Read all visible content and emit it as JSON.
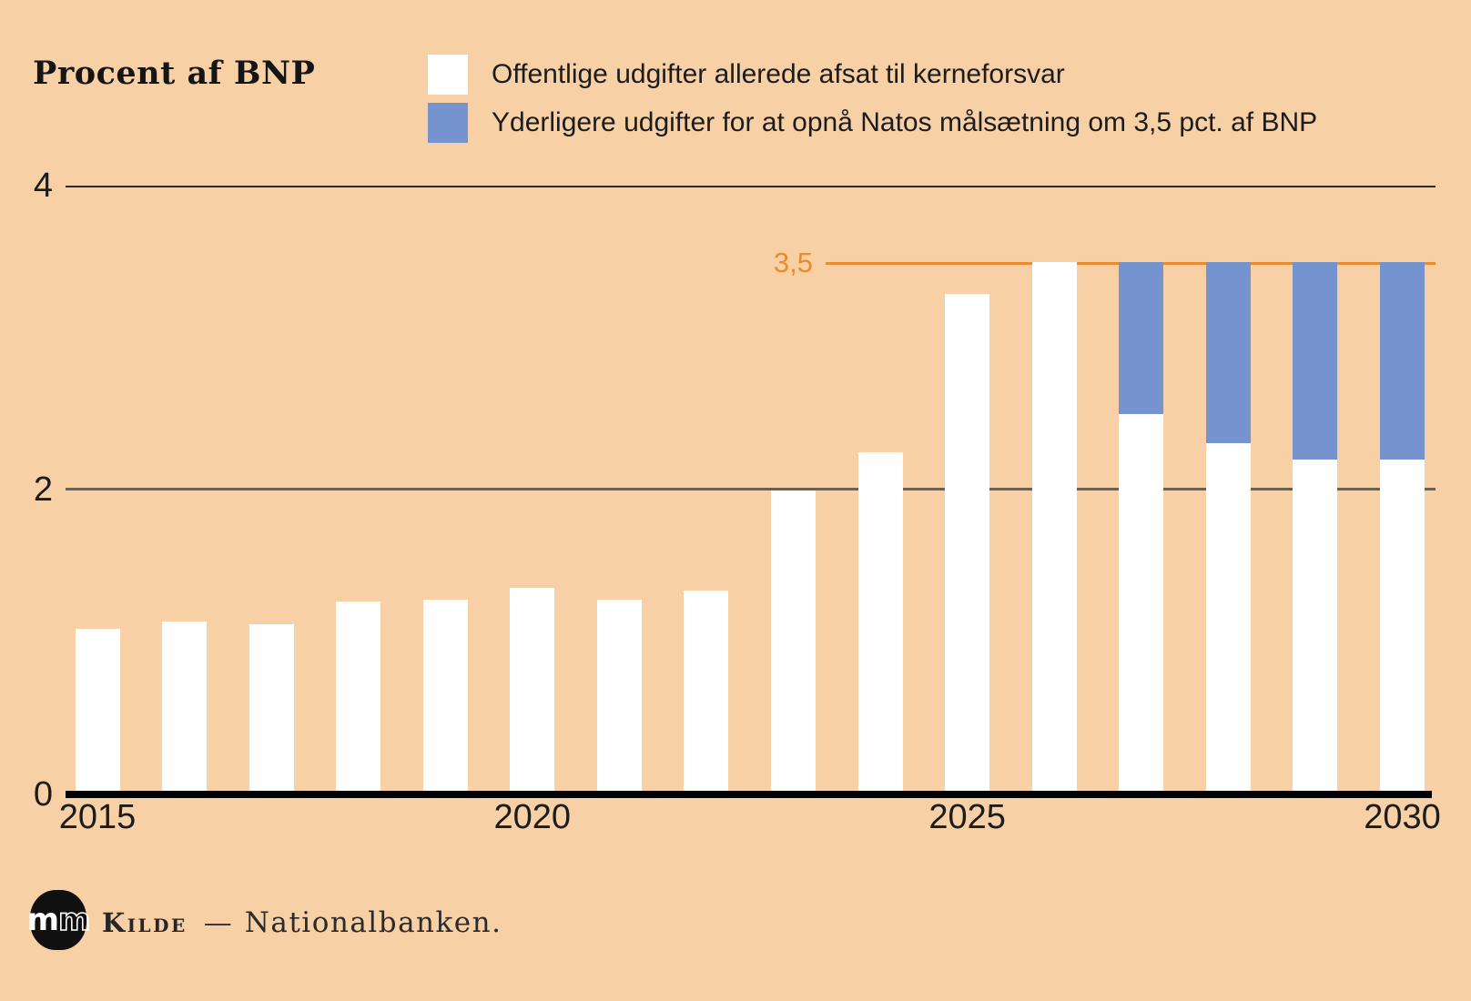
{
  "header": {
    "title": "Procent af BNP"
  },
  "legend": {
    "items": [
      {
        "label": "Offentlige udgifter allerede afsat til kerneforsvar",
        "color": "#ffffff"
      },
      {
        "label": "Yderligere udgifter for at opnå Natos målsætning om 3,5 pct. af BNP",
        "color": "#7593ce"
      }
    ]
  },
  "annotation": {
    "label": "3,5",
    "value": 3.5,
    "color": "#ea8b30"
  },
  "axis": {
    "y_ticks": [
      {
        "label": "4",
        "value": 4
      },
      {
        "label": "2",
        "value": 2
      },
      {
        "label": "0",
        "value": 0
      }
    ],
    "x_ticks": [
      {
        "label": "2015",
        "index": 0
      },
      {
        "label": "2020",
        "index": 5
      },
      {
        "label": "2025",
        "index": 10
      },
      {
        "label": "2030",
        "index": 15
      }
    ]
  },
  "chart_data": {
    "type": "bar",
    "stacked": true,
    "title": "Procent af BNP",
    "ylabel": "Procent af BNP",
    "ylim": [
      0,
      4
    ],
    "grid": "horizontal",
    "legend_position": "top",
    "reference_line": {
      "value": 3.5,
      "label": "3,5",
      "color": "#ea8b30"
    },
    "categories": [
      "2015",
      "2016",
      "2017",
      "2018",
      "2019",
      "2020",
      "2021",
      "2022",
      "2023",
      "2024",
      "2025",
      "2026",
      "2027",
      "2028",
      "2029",
      "2030"
    ],
    "series": [
      {
        "name": "Offentlige udgifter allerede afsat til kerneforsvar",
        "color": "#ffffff",
        "values": [
          1.09,
          1.14,
          1.12,
          1.27,
          1.28,
          1.36,
          1.28,
          1.34,
          2.0,
          2.25,
          3.29,
          3.5,
          2.5,
          2.31,
          2.2,
          2.2
        ]
      },
      {
        "name": "Yderligere udgifter for at opnå Natos målsætning om 3,5 pct. af BNP",
        "color": "#7593ce",
        "values": [
          0,
          0,
          0,
          0,
          0,
          0,
          0,
          0,
          0,
          0,
          0,
          0,
          1.0,
          1.19,
          1.3,
          1.3
        ]
      }
    ]
  },
  "footer": {
    "logo_m1": "m",
    "logo_m2": "m",
    "source_label": "Kilde",
    "separator": "—",
    "source": "Nationalbanken."
  }
}
